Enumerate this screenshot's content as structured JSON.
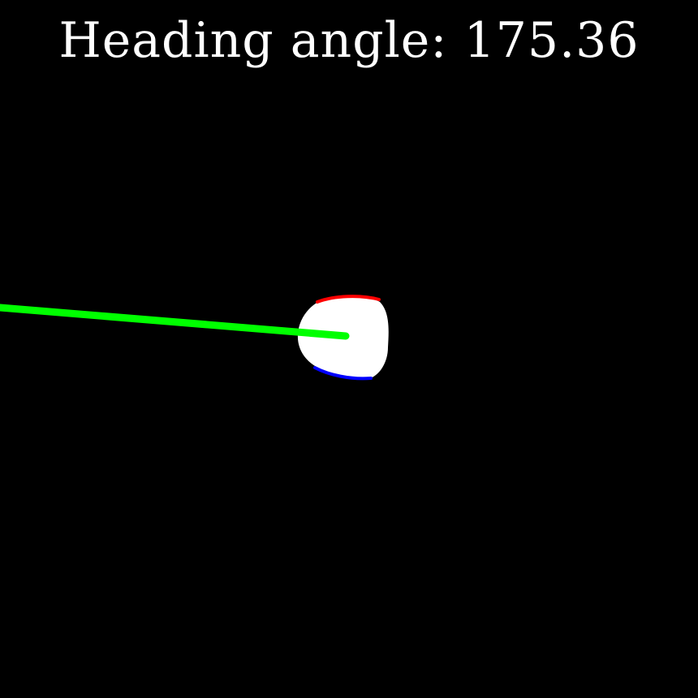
{
  "overlay": {
    "heading_label": "Heading angle: 175.36",
    "heading_angle_deg": 175.36
  },
  "colors": {
    "background": "#000000",
    "text": "#ffffff",
    "blob": "#ffffff",
    "heading_line": "#00ff00",
    "edge_top": "#ff0000",
    "edge_bottom": "#0000ff"
  }
}
